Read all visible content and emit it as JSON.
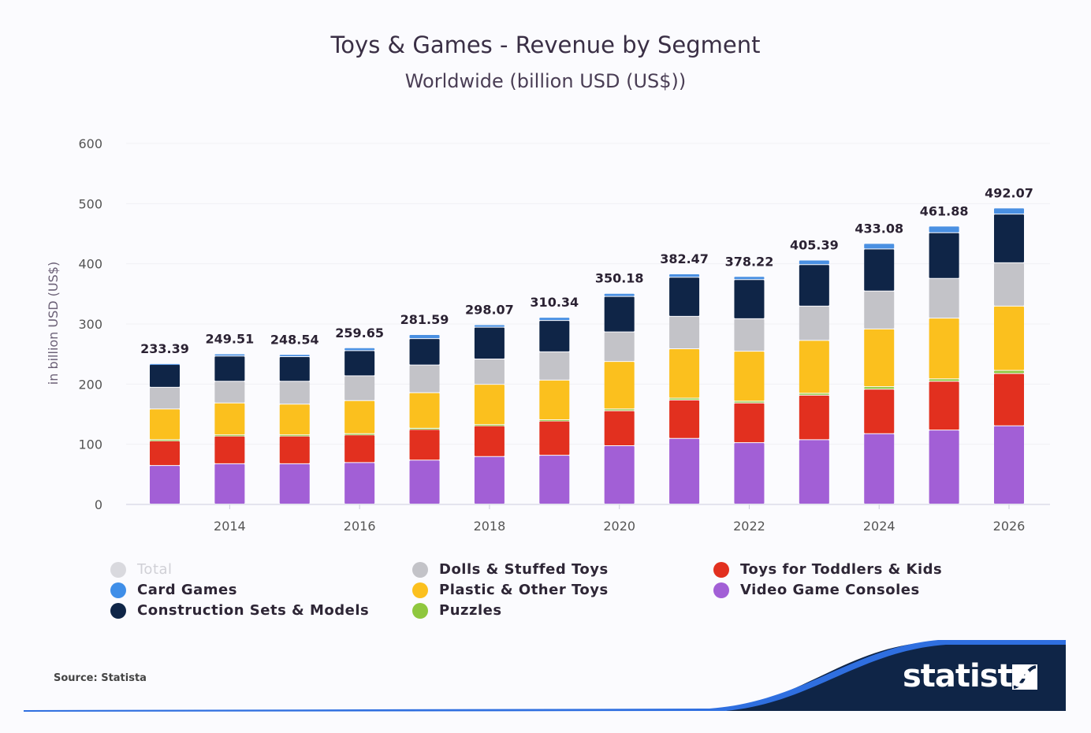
{
  "chart_data": {
    "type": "bar",
    "stacked": true,
    "title": "Toys & Games - Revenue by Segment",
    "subtitle": "Worldwide (billion USD (US$))",
    "xlabel": "",
    "ylabel": "in billion USD (US$)",
    "ylim": [
      0,
      600
    ],
    "yticks": [
      "0",
      "100",
      "200",
      "300",
      "400",
      "500",
      "600"
    ],
    "xtick_labels": [
      "2014",
      "2016",
      "2018",
      "2020",
      "2022",
      "2024",
      "2026"
    ],
    "grid": true,
    "legend_position": "bottom",
    "categories": [
      "2013",
      "2014",
      "2015",
      "2016",
      "2017",
      "2018",
      "2019",
      "2020",
      "2021",
      "2022",
      "2023",
      "2024",
      "2025",
      "2026"
    ],
    "totals": [
      "233.39",
      "249.51",
      "248.54",
      "259.65",
      "281.59",
      "298.07",
      "310.34",
      "350.18",
      "382.47",
      "378.22",
      "405.39",
      "433.08",
      "461.88",
      "492.07"
    ],
    "series": [
      {
        "name": "Video Game Consoles",
        "color": "#a25fd6",
        "values": [
          64,
          67,
          67,
          69,
          73,
          79,
          81,
          97,
          109,
          102,
          107,
          117,
          123,
          130
        ]
      },
      {
        "name": "Toys for Toddlers & Kids",
        "color": "#e2301f",
        "values": [
          41,
          46,
          46,
          46,
          51,
          51,
          57,
          58,
          64,
          66,
          74,
          74,
          81,
          87
        ]
      },
      {
        "name": "Puzzles",
        "color": "#8fc73e",
        "values": [
          2,
          2,
          2,
          2,
          2,
          2,
          2,
          3,
          3,
          3,
          3,
          4,
          4,
          5
        ]
      },
      {
        "name": "Plastic & Other Toys",
        "color": "#fbc01e",
        "values": [
          51,
          53,
          51,
          55,
          59,
          67,
          66,
          79,
          82,
          83,
          88,
          96,
          101,
          107
        ]
      },
      {
        "name": "Dolls & Stuffed Toys",
        "color": "#c3c3c8",
        "values": [
          36,
          36,
          38,
          41,
          46,
          42,
          47,
          49,
          54,
          54,
          57,
          63,
          66,
          72
        ]
      },
      {
        "name": "Construction Sets & Models",
        "color": "#0f2547",
        "values": [
          38,
          42,
          41,
          42,
          44,
          53,
          52,
          59,
          65,
          65,
          69,
          70,
          76,
          81
        ]
      },
      {
        "name": "Card Games",
        "color": "#4a90e2",
        "values": [
          1.39,
          3.51,
          3.54,
          4.65,
          6.59,
          4.07,
          5.34,
          5.18,
          5.47,
          5.22,
          7.39,
          9.08,
          10.88,
          10.07
        ]
      }
    ]
  },
  "legend": [
    {
      "label": "Total",
      "color": "#d9d9de",
      "muted": true
    },
    {
      "label": "Card Games",
      "color": "#3f8ee8"
    },
    {
      "label": "Construction Sets & Models",
      "color": "#0f2547"
    },
    {
      "label": "Dolls & Stuffed Toys",
      "color": "#c3c3c8"
    },
    {
      "label": "Plastic & Other Toys",
      "color": "#fbc01e"
    },
    {
      "label": "Puzzles",
      "color": "#8fc73e"
    },
    {
      "label": "Toys for Toddlers & Kids",
      "color": "#e2301f"
    },
    {
      "label": "Video Game Consoles",
      "color": "#a25fd6"
    }
  ],
  "footer": {
    "source": "Source: Statista",
    "logo": "statista"
  }
}
